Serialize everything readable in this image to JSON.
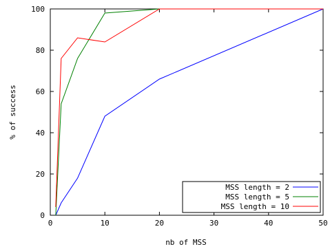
{
  "chart_data": {
    "type": "line",
    "title": "",
    "xlabel": "nb of MSS",
    "ylabel": "% of success",
    "xlim": [
      0,
      50
    ],
    "ylim": [
      0,
      100
    ],
    "xticks": [
      0,
      10,
      20,
      30,
      40,
      50
    ],
    "yticks": [
      0,
      20,
      40,
      60,
      80,
      100
    ],
    "grid": false,
    "legend_position": "bottom-right",
    "series": [
      {
        "name": "MSS length = 2",
        "color": "#0000ff",
        "x": [
          1,
          2,
          5,
          10,
          20,
          50
        ],
        "y": [
          0,
          6,
          18,
          48,
          66,
          100
        ]
      },
      {
        "name": "MSS length = 5",
        "color": "#008000",
        "x": [
          1,
          2,
          5,
          10,
          20,
          50
        ],
        "y": [
          0,
          54,
          76,
          98,
          100,
          100
        ]
      },
      {
        "name": "MSS length = 10",
        "color": "#ff0000",
        "x": [
          1,
          2,
          5,
          10,
          20,
          50
        ],
        "y": [
          4,
          76,
          86,
          84,
          100,
          100
        ]
      }
    ]
  }
}
